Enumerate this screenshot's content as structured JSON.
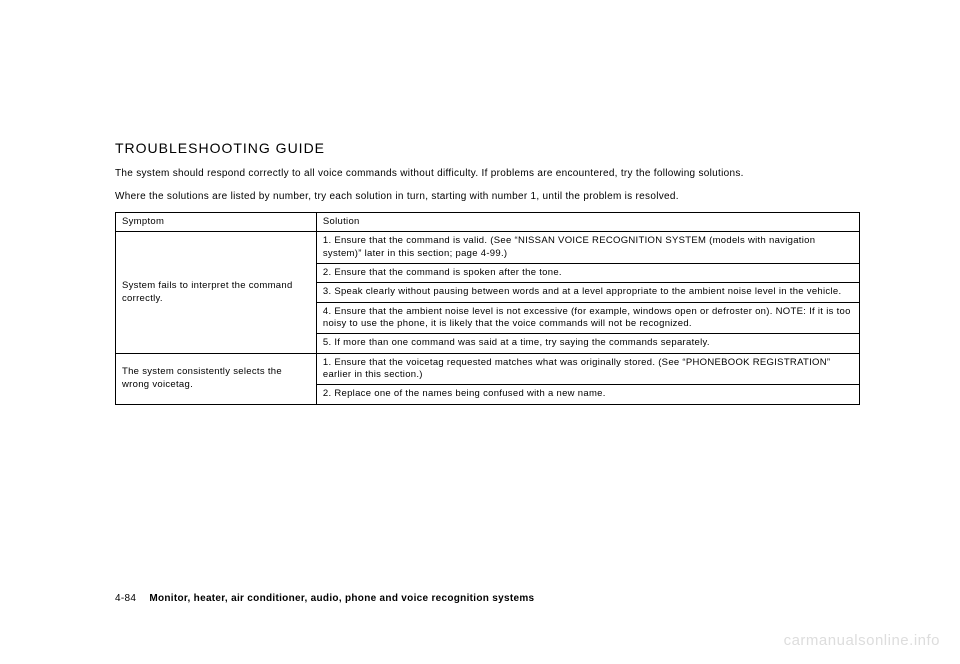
{
  "heading": "TROUBLESHOOTING GUIDE",
  "intro_line1": "The system should respond correctly to all voice commands without difficulty. If problems are encountered, try the following solutions.",
  "intro_line2": "Where the solutions are listed by number, try each solution in turn, starting with number 1, until the problem is resolved.",
  "table": {
    "header": {
      "c1": "Symptom",
      "c2": "Solution"
    },
    "row1_symptom": "System fails to interpret the command correctly.",
    "row1_sol1": "1. Ensure that the command is valid. (See “NISSAN VOICE RECOGNITION SYSTEM (models with navigation system)” later in this section; page 4-99.)",
    "row1_sol2": "2. Ensure that the command is spoken after the tone.",
    "row1_sol3": "3. Speak clearly without pausing between words and at a level appropriate to the ambient noise level in the vehicle.",
    "row1_sol4": "4. Ensure that the ambient noise level is not excessive (for example, windows open or defroster on). NOTE: If it is too noisy to use the phone, it is likely that the voice commands will not be recognized.",
    "row1_sol5": "5. If more than one command was said at a time, try saying the commands separately.",
    "row2_symptom": "The system consistently selects the wrong voicetag.",
    "row2_sol1": "1. Ensure that the voicetag requested matches what was originally stored. (See “PHONEBOOK REGISTRATION” earlier in this section.)",
    "row2_sol2": "2. Replace one of the names being confused with a new name."
  },
  "footer": {
    "page": "4-84",
    "section": "Monitor, heater, air conditioner, audio, phone and voice recognition systems"
  },
  "watermark": "carmanualsonline.info",
  "styles": {
    "bg": "#ffffff",
    "text": "#000000",
    "border": "#000000",
    "watermark_color": "#dddddd",
    "heading_fontsize": 14,
    "body_fontsize": 10,
    "table_fontsize": 9.5
  }
}
